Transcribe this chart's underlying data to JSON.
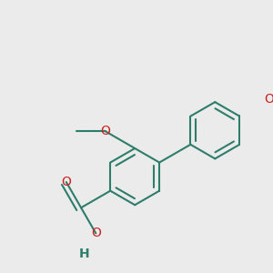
{
  "bg_color": "#ebebeb",
  "bond_color": "#2d7d6b",
  "heteroatom_color": "#cc2222",
  "bond_width": 1.5,
  "figsize": [
    3.0,
    3.0
  ],
  "dpi": 100,
  "xlim": [
    -2.5,
    2.5
  ],
  "ylim": [
    -3.2,
    3.2
  ]
}
